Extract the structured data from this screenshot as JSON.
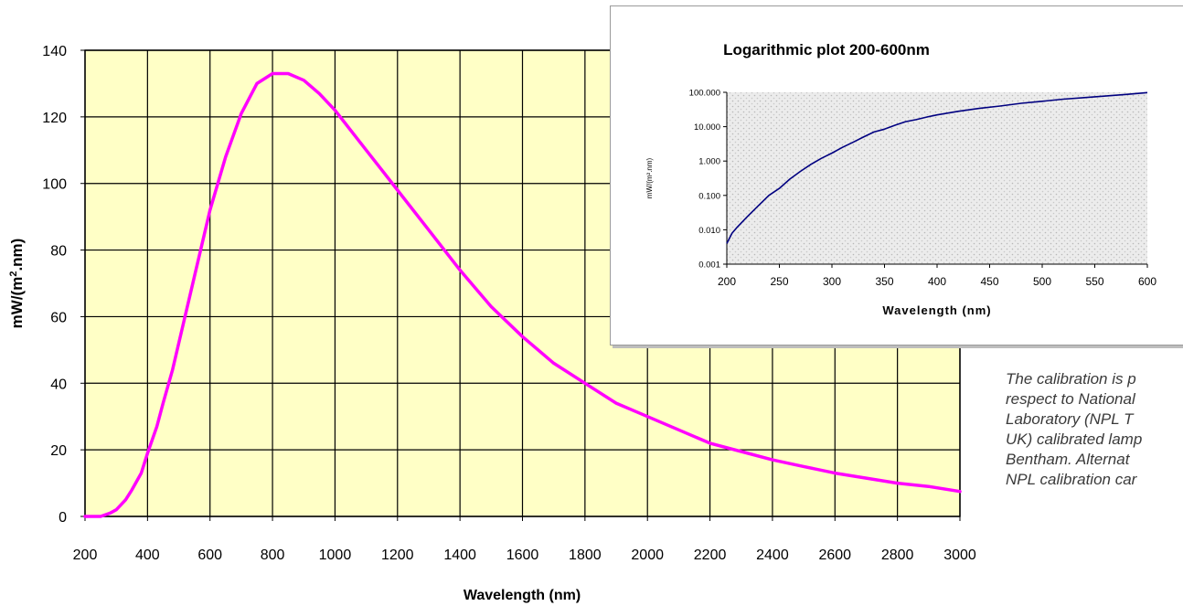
{
  "chart_data": [
    {
      "type": "line",
      "title": "",
      "xlabel": "Wavelength (nm)",
      "ylabel_main": "mW/(m",
      "ylabel_sup": "2",
      "ylabel_tail": ".nm)",
      "xlim": [
        200,
        3000
      ],
      "ylim": [
        0,
        140
      ],
      "x_ticks": [
        200,
        400,
        600,
        800,
        1000,
        1200,
        1400,
        1600,
        1800,
        2000,
        2200,
        2400,
        2600,
        2800,
        3000
      ],
      "y_ticks": [
        0,
        20,
        40,
        60,
        80,
        100,
        120,
        140
      ],
      "grid": true,
      "plot_background": "#FFFFC6",
      "grid_color": "#000000",
      "series": [
        {
          "color": "#FF00FF",
          "x": [
            200,
            250,
            280,
            300,
            330,
            350,
            380,
            400,
            430,
            450,
            480,
            500,
            550,
            600,
            650,
            700,
            750,
            800,
            850,
            900,
            950,
            1000,
            1050,
            1100,
            1150,
            1200,
            1300,
            1400,
            1500,
            1600,
            1700,
            1800,
            1900,
            2000,
            2100,
            2200,
            2300,
            2400,
            2500,
            2600,
            2700,
            2800,
            2900,
            3000
          ],
          "values": [
            0,
            0,
            1,
            2,
            5,
            8,
            13,
            19,
            27,
            34,
            44,
            52,
            72,
            92,
            108,
            121,
            130,
            133,
            133,
            131,
            127,
            122,
            116,
            110,
            104,
            98,
            86,
            74,
            63,
            54,
            46,
            40,
            34,
            30,
            26,
            22,
            19.5,
            17,
            15,
            13,
            11.5,
            10,
            9,
            7.5
          ]
        }
      ]
    },
    {
      "type": "line",
      "title": "Logarithmic plot 200-600nm",
      "xlabel": "Wavelength (nm)",
      "ylabel": "mW/(m².nm)",
      "xlim": [
        200,
        600
      ],
      "ylim": [
        0.001,
        100
      ],
      "yscale": "log",
      "x_ticks": [
        200,
        250,
        300,
        350,
        400,
        450,
        500,
        550,
        600
      ],
      "y_tick_values": [
        0.001,
        0.01,
        0.1,
        1,
        10,
        100
      ],
      "y_tick_labels": [
        "0.001",
        "0.010",
        "0.100",
        "1.000",
        "10.000",
        "100.000"
      ],
      "grid": false,
      "plot_background": "#E4E4E4",
      "series": [
        {
          "color": "#000080",
          "x": [
            200,
            205,
            210,
            220,
            230,
            240,
            250,
            260,
            270,
            280,
            290,
            300,
            310,
            320,
            330,
            340,
            350,
            360,
            370,
            380,
            390,
            400,
            420,
            440,
            460,
            480,
            500,
            520,
            540,
            560,
            580,
            600
          ],
          "values": [
            0.004,
            0.008,
            0.012,
            0.025,
            0.05,
            0.1,
            0.16,
            0.3,
            0.5,
            0.8,
            1.2,
            1.7,
            2.5,
            3.5,
            5,
            7,
            8.5,
            11,
            14,
            16,
            19,
            22,
            28,
            34,
            40,
            48,
            55,
            63,
            70,
            78,
            87,
            98
          ]
        }
      ]
    }
  ],
  "note": {
    "lines": [
      "The calibration is p",
      "respect to National",
      "Laboratory (NPL T",
      "UK) calibrated lamp",
      "Bentham.  Alternat",
      "NPL calibration car"
    ]
  }
}
